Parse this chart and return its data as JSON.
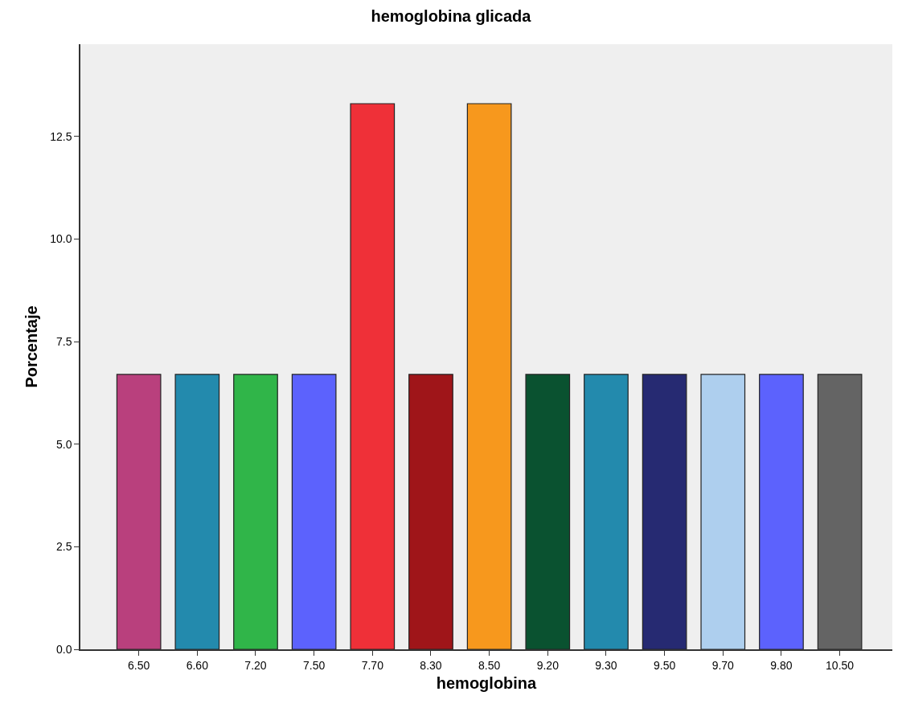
{
  "chart_data": {
    "type": "bar",
    "title": "hemoglobina glicada",
    "xlabel": "hemoglobina",
    "ylabel": "Porcentaje",
    "categories": [
      "6.50",
      "6.60",
      "7.20",
      "7.50",
      "7.70",
      "8.30",
      "8.50",
      "9.20",
      "9.30",
      "9.50",
      "9.70",
      "9.80",
      "10.50"
    ],
    "values": [
      6.7,
      6.7,
      6.7,
      6.7,
      13.3,
      6.7,
      13.3,
      6.7,
      6.7,
      6.7,
      6.7,
      6.7,
      6.7
    ],
    "colors": [
      "#b9407d",
      "#238aad",
      "#30b549",
      "#5c62fd",
      "#ef3038",
      "#9f1519",
      "#f7981d",
      "#0a5230",
      "#238aad",
      "#262a72",
      "#aecfee",
      "#5c62fd",
      "#646464"
    ],
    "ylim": [
      0,
      14.75
    ],
    "yticks": [
      {
        "value": 0,
        "label": "0.0"
      },
      {
        "value": 2.5,
        "label": "2.5"
      },
      {
        "value": 5,
        "label": "5.0"
      },
      {
        "value": 7.5,
        "label": "7.5"
      },
      {
        "value": 10,
        "label": "10.0"
      },
      {
        "value": 12.5,
        "label": "12.5"
      }
    ],
    "grid": false
  }
}
